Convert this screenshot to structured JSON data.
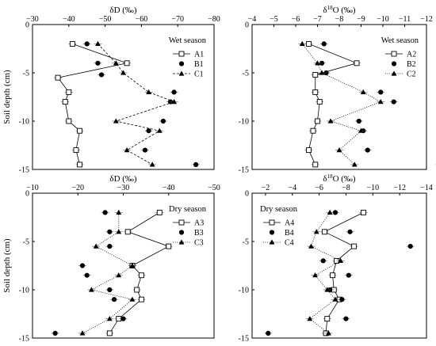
{
  "chart_data": [
    {
      "type": "line",
      "panel": "top-left",
      "season_label": "Wet season",
      "xlabel": "δD (‰)",
      "ylabel": "Soil depth (cm)",
      "xlim": [
        -30,
        -80
      ],
      "ylim": [
        0,
        -15
      ],
      "x_ticks": [
        "−30",
        "−40",
        "−50",
        "−60",
        "−70",
        "−80"
      ],
      "y_ticks": [
        "0",
        "-5",
        "-10",
        "-15"
      ],
      "legend_position": "top-right",
      "series": [
        {
          "name": "A1",
          "marker": "square-open",
          "line": "solid",
          "x": [
            -41,
            -56,
            -37,
            -40,
            -39,
            -40,
            -43,
            -42,
            -43
          ],
          "y": [
            -2,
            -4,
            -5.5,
            -7,
            -8,
            -10,
            -11,
            -13,
            -14.5
          ]
        },
        {
          "name": "B1",
          "marker": "circle",
          "line": "none",
          "x": [
            -45,
            -48,
            -49,
            -69,
            -68,
            -66,
            -62,
            -61,
            -75
          ],
          "y": [
            -2,
            -4,
            -5.2,
            -7,
            -8,
            -10,
            -11,
            -13,
            -14.5
          ]
        },
        {
          "name": "C1",
          "marker": "triangle",
          "line": "dashed",
          "x": [
            -48,
            -53,
            -55,
            -62,
            -69,
            -53,
            -65,
            -56,
            -63
          ],
          "y": [
            -2,
            -4,
            -5,
            -7,
            -8,
            -10,
            -11,
            -13,
            -14.5
          ]
        }
      ]
    },
    {
      "type": "line",
      "panel": "top-right",
      "season_label": "Wet season",
      "xlabel": "δ18O (‰)",
      "xlim": [
        -4,
        -12
      ],
      "ylim": [
        0,
        -15
      ],
      "x_ticks": [
        "−4",
        "−5",
        "−6",
        "−7",
        "−8",
        "−9",
        "−10",
        "−11",
        "−12"
      ],
      "y_ticks": [
        "0",
        "-5",
        "-10",
        "-15"
      ],
      "legend_position": "top-right",
      "series": [
        {
          "name": "A2",
          "marker": "square-open",
          "line": "solid",
          "x": [
            -6.6,
            -8.8,
            -6.9,
            -6.9,
            -7.1,
            -7.0,
            -6.8,
            -6.6,
            -6.9
          ],
          "y": [
            -2,
            -4,
            -5.2,
            -7,
            -8,
            -10,
            -11,
            -13,
            -14.5
          ]
        },
        {
          "name": "B2",
          "marker": "circle",
          "line": "none",
          "x": [
            -7.3,
            -7.2,
            -7.4,
            -9.9,
            -10.5,
            -8.9,
            -9.1,
            -9.3,
            -12.6
          ],
          "y": [
            -2,
            -4,
            -5,
            -7,
            -8,
            -10,
            -11,
            -13,
            -14.5
          ]
        },
        {
          "name": "C2",
          "marker": "triangle",
          "line": "dotted",
          "x": [
            -6.3,
            -7.0,
            -7.2,
            -9.1,
            -9.9,
            -7.6,
            -9.0,
            -8.0,
            -8.7
          ],
          "y": [
            -2,
            -4,
            -5,
            -7,
            -8,
            -10,
            -11,
            -13,
            -14.5
          ]
        }
      ]
    },
    {
      "type": "line",
      "panel": "bottom-left",
      "season_label": "Dry season",
      "xlabel": "δD (‰)",
      "ylabel": "Soil depth (cm)",
      "xlim": [
        -10,
        -50
      ],
      "ylim": [
        0,
        -15
      ],
      "x_ticks": [
        "−10",
        "−20",
        "−30",
        "−40",
        "−50"
      ],
      "y_ticks": [
        "0",
        "-5",
        "-10",
        "-15"
      ],
      "legend_position": "top-right",
      "series": [
        {
          "name": "A3",
          "marker": "square-open",
          "line": "solid",
          "x": [
            -38,
            -31,
            -40,
            -32,
            -34,
            -33,
            -34,
            -29,
            -27
          ],
          "y": [
            -2,
            -4,
            -5.5,
            -7.5,
            -8.5,
            -10,
            -11,
            -13,
            -14.5
          ]
        },
        {
          "name": "B3",
          "marker": "circle",
          "line": "none",
          "x": [
            -26,
            -27,
            -27,
            -21,
            -22,
            -27,
            -28,
            -30,
            -15
          ],
          "y": [
            -2,
            -4,
            -5.5,
            -7.5,
            -8.5,
            -10,
            -11,
            -13,
            -14.5
          ]
        },
        {
          "name": "C3",
          "marker": "triangle",
          "line": "dotted",
          "x": [
            -29,
            -29,
            -24,
            -32,
            -29,
            -23,
            -32,
            -27,
            -21
          ],
          "y": [
            -2,
            -4,
            -5.5,
            -7.5,
            -8.5,
            -10,
            -11,
            -13,
            -14.5
          ]
        }
      ]
    },
    {
      "type": "line",
      "panel": "bottom-right",
      "season_label": "Dry season",
      "xlabel": "δ18O (‰)",
      "xlim": [
        -1,
        -14
      ],
      "ylim": [
        0,
        -15
      ],
      "x_ticks": [
        "−2",
        "−4",
        "−6",
        "−8",
        "−10",
        "−12",
        "−14"
      ],
      "y_ticks": [
        "0",
        "-5",
        "-10",
        "-15"
      ],
      "legend_position": "top-left",
      "series": [
        {
          "name": "A4",
          "marker": "square-open",
          "line": "solid",
          "x": [
            -9.3,
            -6.4,
            -8.6,
            -7.3,
            -7.0,
            -7.1,
            -7.5,
            -6.6,
            -6.5
          ],
          "y": [
            -2,
            -4,
            -5.5,
            -7,
            -8.5,
            -10,
            -11,
            -13,
            -14.5
          ]
        },
        {
          "name": "B4",
          "marker": "circle",
          "line": "none",
          "x": [
            -7.2,
            -8.3,
            -12.8,
            -6.3,
            -8.2,
            -6.8,
            -7.7,
            -8.0,
            -2.2
          ],
          "y": [
            -2,
            -4,
            -5.5,
            -7,
            -8.5,
            -10,
            -11,
            -13,
            -14.5
          ]
        },
        {
          "name": "C4",
          "marker": "triangle",
          "line": "dotted",
          "x": [
            -6.8,
            -5.8,
            -5.4,
            -7.6,
            -5.7,
            -6.6,
            -7.2,
            -5.3,
            -6.7
          ],
          "y": [
            -2,
            -4,
            -5.5,
            -7,
            -8.5,
            -10,
            -11,
            -13,
            -14.5
          ]
        }
      ]
    }
  ]
}
